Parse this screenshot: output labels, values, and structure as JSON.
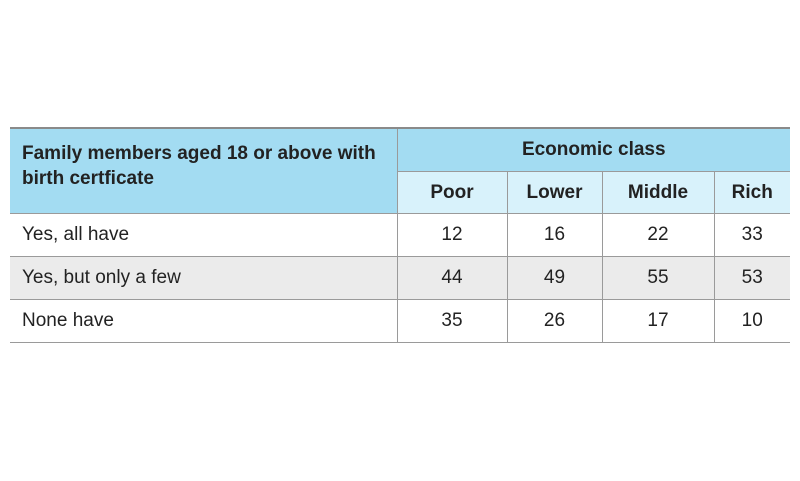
{
  "table": {
    "row_header": "Family members aged 18 or above with birth certficate",
    "group_header": "Economic class",
    "columns": [
      "Poor",
      "Lower",
      "Middle",
      "Rich"
    ],
    "rows": [
      {
        "label": "Yes, all have",
        "values": [
          12,
          16,
          22,
          33
        ]
      },
      {
        "label": "Yes, but only a few",
        "values": [
          44,
          49,
          55,
          53
        ]
      },
      {
        "label": "None have",
        "values": [
          35,
          26,
          17,
          10
        ]
      }
    ]
  }
}
